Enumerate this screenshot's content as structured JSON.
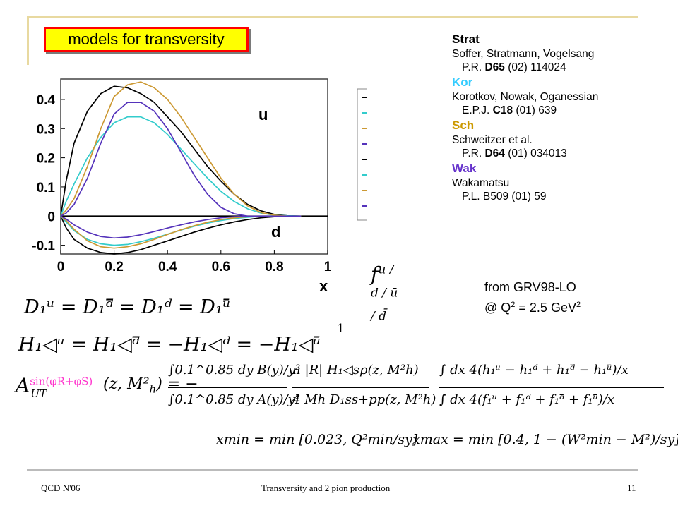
{
  "slide": {
    "title": "models for transversity",
    "footer_left": "QCD N'06",
    "footer_center": "Transversity and 2 pion production",
    "footer_right": "11"
  },
  "references": [
    {
      "name": "Strat",
      "color": "#000000",
      "authors": "Soffer, Stratmann, Vogelsang",
      "cite_pre": "P.R. ",
      "cite_bold": "D65",
      "cite_post": " (02) 114024"
    },
    {
      "name": "Kor",
      "color": "#33ccff",
      "authors": "Korotkov, Nowak, Oganessian",
      "cite_pre": "E.P.J. ",
      "cite_bold": "C18",
      "cite_post": " (01) 639"
    },
    {
      "name": "Sch",
      "color": "#cc9900",
      "authors": "Schweitzer et al.",
      "cite_pre": "P.R. ",
      "cite_bold": "D64",
      "cite_post": " (01) 034013"
    },
    {
      "name": "Wak",
      "color": "#6633cc",
      "authors": "Wakamatsu",
      "cite_pre": "P.L. B509 (01) 59",
      "cite_bold": "",
      "cite_post": ""
    }
  ],
  "plot_labels": {
    "u": "u",
    "d": "d",
    "x": "x"
  },
  "f1_term": {
    "base": "f",
    "sup": "u / d / ū / d̄",
    "sub": "1"
  },
  "grv": {
    "line1": "from GRV98-LO",
    "line2_pre": "@ Q",
    "exp1": "2",
    "line2_mid": " = 2.5 GeV",
    "exp2": "2"
  },
  "equations": {
    "d1": "D₁ᵘ = D₁ᵈ̄ = D₁ᵈ = D₁ᵘ̄",
    "h1": "H₁◁ᵘ = H₁◁ᵈ̄ = −H₁◁ᵈ = −H₁◁ᵘ̄",
    "a_label": "A",
    "a_sup": "sin(φR+φS)",
    "a_sub": "UT",
    "a_args": "(z, M",
    "int_num": "∫0.1^0.85 dy B(y)/y²",
    "int_den": "∫0.1^0.85 dy A(y)/y²",
    "frac_num": "π |R| H₁◁sp(z, M²h)",
    "frac_den": "4 Mh D₁ss+pp(z, M²h)",
    "x_num": "∫ dx 4(h₁ᵘ − h₁ᵈ + h₁ᵈ̄ − h₁ᵘ̄)/x",
    "x_den": "∫ dx 4(f₁ᵘ + f₁ᵈ + f₁ᵈ̄ + f₁ᵘ̄)/x",
    "xmin": "xmin = min [0.023, Q²min/sy]",
    "xmax": "xmax = min [0.4, 1 − (W²min − M²)/sy]"
  },
  "chart_data": {
    "type": "line",
    "xlim": [
      0,
      1
    ],
    "ylim": [
      -0.13,
      0.47
    ],
    "x_ticks": [
      "0",
      "0.2",
      "0.4",
      "0.6",
      "0.8",
      "1"
    ],
    "y_ticks": [
      "-0.1",
      "0",
      "0.1",
      "0.2",
      "0.3",
      "0.4"
    ],
    "x_tick_values": [
      0,
      0.2,
      0.4,
      0.6,
      0.8,
      1
    ],
    "y_tick_values": [
      -0.1,
      0,
      0.1,
      0.2,
      0.3,
      0.4
    ],
    "legend": [
      "Strat",
      "Kor",
      "Schw",
      "Wak",
      "Strat",
      "Kor",
      "Schw",
      "Wak"
    ],
    "legend_position": "right",
    "x": [
      0,
      0.02,
      0.05,
      0.1,
      0.15,
      0.2,
      0.25,
      0.3,
      0.35,
      0.4,
      0.45,
      0.5,
      0.55,
      0.6,
      0.65,
      0.7,
      0.75,
      0.8,
      0.85,
      0.9
    ],
    "series": [
      {
        "name": "Strat",
        "color": "#000000",
        "values": [
          0,
          0.12,
          0.25,
          0.36,
          0.42,
          0.445,
          0.44,
          0.42,
          0.39,
          0.34,
          0.29,
          0.23,
          0.17,
          0.12,
          0.075,
          0.04,
          0.018,
          0.006,
          0.001,
          0
        ]
      },
      {
        "name": "Kor",
        "color": "#33cccc",
        "values": [
          0,
          0.05,
          0.11,
          0.2,
          0.27,
          0.32,
          0.34,
          0.34,
          0.32,
          0.28,
          0.23,
          0.18,
          0.13,
          0.085,
          0.05,
          0.025,
          0.01,
          0.003,
          0.001,
          0
        ]
      },
      {
        "name": "Schw",
        "color": "#cc9933",
        "values": [
          0,
          0.02,
          0.06,
          0.17,
          0.3,
          0.41,
          0.45,
          0.46,
          0.44,
          0.4,
          0.34,
          0.27,
          0.2,
          0.13,
          0.075,
          0.035,
          0.012,
          0.003,
          0,
          0
        ]
      },
      {
        "name": "Wak",
        "color": "#5533bb",
        "values": [
          0,
          0.01,
          0.04,
          0.13,
          0.25,
          0.35,
          0.39,
          0.39,
          0.36,
          0.3,
          0.22,
          0.14,
          0.075,
          0.03,
          0.008,
          0,
          -0.002,
          -0.001,
          0,
          0
        ]
      },
      {
        "name": "Strat",
        "color": "#000000",
        "values": [
          0,
          -0.04,
          -0.08,
          -0.11,
          -0.125,
          -0.13,
          -0.125,
          -0.115,
          -0.1,
          -0.085,
          -0.07,
          -0.055,
          -0.042,
          -0.03,
          -0.02,
          -0.012,
          -0.006,
          -0.002,
          0,
          0
        ]
      },
      {
        "name": "Kor",
        "color": "#33cccc",
        "values": [
          0,
          -0.02,
          -0.05,
          -0.08,
          -0.095,
          -0.1,
          -0.097,
          -0.088,
          -0.076,
          -0.062,
          -0.048,
          -0.035,
          -0.024,
          -0.015,
          -0.008,
          -0.004,
          -0.001,
          0,
          0,
          0
        ]
      },
      {
        "name": "Schw",
        "color": "#cc9933",
        "values": [
          0,
          -0.015,
          -0.045,
          -0.085,
          -0.105,
          -0.11,
          -0.105,
          -0.095,
          -0.08,
          -0.063,
          -0.047,
          -0.033,
          -0.021,
          -0.012,
          -0.006,
          -0.002,
          0,
          0,
          0,
          0
        ]
      },
      {
        "name": "Wak",
        "color": "#5533bb",
        "values": [
          0,
          -0.01,
          -0.03,
          -0.055,
          -0.07,
          -0.075,
          -0.072,
          -0.064,
          -0.053,
          -0.041,
          -0.03,
          -0.02,
          -0.012,
          -0.006,
          -0.002,
          0,
          0,
          0,
          0,
          0
        ]
      }
    ]
  }
}
